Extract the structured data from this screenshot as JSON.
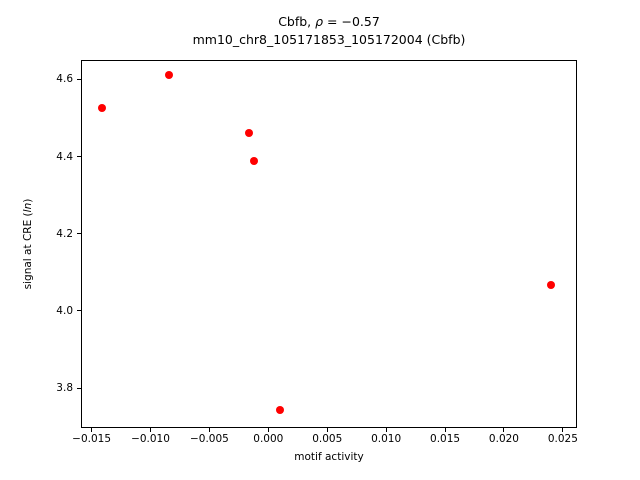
{
  "figure": {
    "background": "#ffffff"
  },
  "chart_data": {
    "type": "scatter",
    "title_parts": {
      "prefix": "Cbfb, ",
      "rho": "ρ",
      "rest": " = −0.57"
    },
    "title_full": "Cbfb, ρ = −0.57",
    "subtitle": "mm10_chr8_105171853_105172004 (Cbfb)",
    "xlabel": "motif activity",
    "ylabel_parts": {
      "prefix": "signal at CRE (",
      "italic": "ln",
      "suffix": ")"
    },
    "ylabel_full": "signal at CRE (ln)",
    "marker_color": "#ff0000",
    "marker_diameter_px": 8,
    "xlim": [
      -0.0159,
      0.0262
    ],
    "ylim": [
      3.697,
      4.65
    ],
    "grid": false,
    "legend": "none",
    "xticks": [
      {
        "v": -0.015,
        "label": "−0.015"
      },
      {
        "v": -0.01,
        "label": "−0.010"
      },
      {
        "v": -0.005,
        "label": "−0.005"
      },
      {
        "v": 0.0,
        "label": "0.000"
      },
      {
        "v": 0.005,
        "label": "0.005"
      },
      {
        "v": 0.01,
        "label": "0.010"
      },
      {
        "v": 0.015,
        "label": "0.015"
      },
      {
        "v": 0.02,
        "label": "0.020"
      },
      {
        "v": 0.025,
        "label": "0.025"
      }
    ],
    "yticks": [
      {
        "v": 3.8,
        "label": "3.8"
      },
      {
        "v": 4.0,
        "label": "4.0"
      },
      {
        "v": 4.2,
        "label": "4.2"
      },
      {
        "v": 4.4,
        "label": "4.4"
      },
      {
        "v": 4.6,
        "label": "4.6"
      }
    ],
    "points": [
      {
        "x": -0.0141,
        "y": 4.525
      },
      {
        "x": -0.0084,
        "y": 4.612
      },
      {
        "x": -0.0016,
        "y": 4.46
      },
      {
        "x": -0.0012,
        "y": 4.388
      },
      {
        "x": 0.001,
        "y": 3.744
      },
      {
        "x": 0.024,
        "y": 4.068
      }
    ]
  }
}
